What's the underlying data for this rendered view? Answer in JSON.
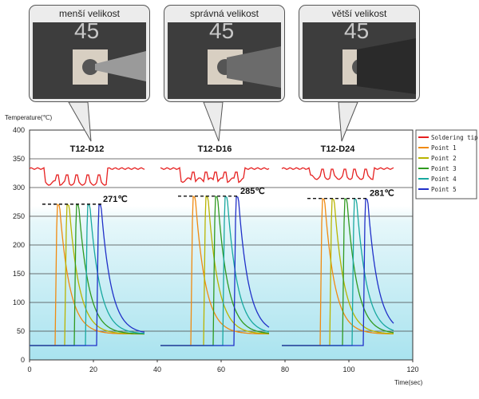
{
  "callouts": [
    {
      "title": "menší velikost"
    },
    {
      "title": "správná velikost"
    },
    {
      "title": "větší velikost"
    }
  ],
  "chart_data": {
    "type": "line",
    "ylabel": "Temperature(℃)",
    "xlabel": "Time(sec)",
    "xlim": [
      0,
      120
    ],
    "ylim": [
      0,
      400
    ],
    "xticks": [
      0,
      20,
      40,
      60,
      80,
      100,
      120
    ],
    "yticks": [
      0,
      50,
      100,
      150,
      200,
      250,
      300,
      350,
      400
    ],
    "grid": "horizontal",
    "legend_position": "right",
    "series_legend": [
      {
        "name": "Soldering tip",
        "color": "#e62020"
      },
      {
        "name": "Point 1",
        "color": "#f08a10"
      },
      {
        "name": "Point 2",
        "color": "#b8b400"
      },
      {
        "name": "Point 3",
        "color": "#2f9a20"
      },
      {
        "name": "Point 4",
        "color": "#18a8a0"
      },
      {
        "name": "Point 5",
        "color": "#2030c8"
      }
    ],
    "panels": [
      {
        "tip": "T12-D12",
        "peak_label": "271℃",
        "peak": 271,
        "start": 0,
        "end": 36,
        "tip_idle": 333,
        "tip_dip": 300,
        "rises": [
          8,
          11,
          14,
          17.5,
          21
        ],
        "baseline": 25,
        "final": 45
      },
      {
        "tip": "T12-D16",
        "peak_label": "285℃",
        "peak": 285,
        "start": 41,
        "end": 75,
        "tip_idle": 333,
        "tip_dip": 305,
        "rises": [
          50.5,
          54.5,
          57.5,
          60.5,
          64
        ],
        "baseline": 25,
        "final": 45
      },
      {
        "tip": "T12-D24",
        "peak_label": "281℃",
        "peak": 281,
        "start": 79,
        "end": 114,
        "tip_idle": 333,
        "tip_dip": 310,
        "rises": [
          91,
          94,
          98,
          101,
          104.5
        ],
        "baseline": 25,
        "final": 45
      }
    ]
  }
}
